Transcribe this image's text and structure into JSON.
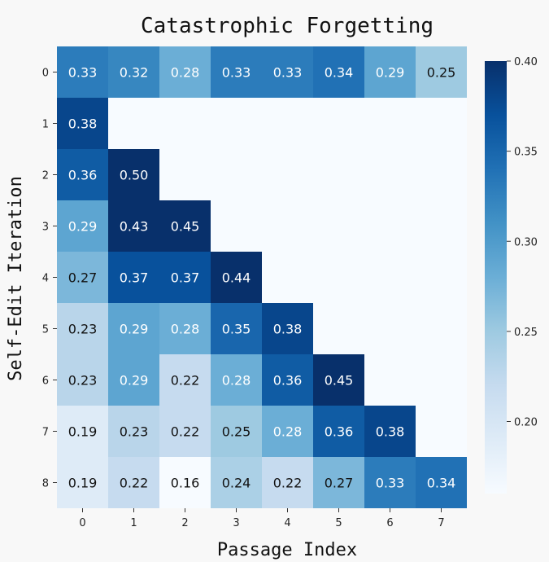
{
  "chart_data": {
    "type": "heatmap",
    "title": "Catastrophic Forgetting",
    "xlabel": "Passage Index",
    "ylabel": "Self-Edit Iteration",
    "x_categories": [
      "0",
      "1",
      "2",
      "3",
      "4",
      "5",
      "6",
      "7"
    ],
    "y_categories": [
      "0",
      "1",
      "2",
      "3",
      "4",
      "5",
      "6",
      "7",
      "8"
    ],
    "values": [
      [
        0.33,
        0.32,
        0.28,
        0.33,
        0.33,
        0.34,
        0.29,
        0.25
      ],
      [
        0.38,
        null,
        null,
        null,
        null,
        null,
        null,
        null
      ],
      [
        0.36,
        0.5,
        null,
        null,
        null,
        null,
        null,
        null
      ],
      [
        0.29,
        0.43,
        0.45,
        null,
        null,
        null,
        null,
        null
      ],
      [
        0.27,
        0.37,
        0.37,
        0.44,
        null,
        null,
        null,
        null
      ],
      [
        0.23,
        0.29,
        0.28,
        0.35,
        0.38,
        null,
        null,
        null
      ],
      [
        0.23,
        0.29,
        0.22,
        0.28,
        0.36,
        0.45,
        null,
        null
      ],
      [
        0.19,
        0.23,
        0.22,
        0.25,
        0.28,
        0.36,
        0.38,
        null
      ],
      [
        0.19,
        0.22,
        0.16,
        0.24,
        0.22,
        0.27,
        0.33,
        0.34
      ]
    ],
    "value_labels": [
      [
        "0.33",
        "0.32",
        "0.28",
        "0.33",
        "0.33",
        "0.34",
        "0.29",
        "0.25"
      ],
      [
        "0.38",
        "",
        "",
        "",
        "",
        "",
        "",
        ""
      ],
      [
        "0.36",
        "0.50",
        "",
        "",
        "",
        "",
        "",
        ""
      ],
      [
        "0.29",
        "0.43",
        "0.45",
        "",
        "",
        "",
        "",
        ""
      ],
      [
        "0.27",
        "0.37",
        "0.37",
        "0.44",
        "",
        "",
        "",
        ""
      ],
      [
        "0.23",
        "0.29",
        "0.28",
        "0.35",
        "0.38",
        "",
        "",
        ""
      ],
      [
        "0.23",
        "0.29",
        "0.22",
        "0.28",
        "0.36",
        "0.45",
        "",
        ""
      ],
      [
        "0.19",
        "0.23",
        "0.22",
        "0.25",
        "0.28",
        "0.36",
        "0.38",
        ""
      ],
      [
        "0.19",
        "0.22",
        "0.16",
        "0.24",
        "0.22",
        "0.27",
        "0.33",
        "0.34"
      ]
    ],
    "colormap": "Blues",
    "vmin": 0.16,
    "vmax": 0.4,
    "colorbar_ticks": [
      0.2,
      0.25,
      0.3,
      0.35,
      0.4
    ],
    "colorbar_tick_labels": [
      "0.20",
      "0.25",
      "0.30",
      "0.35",
      "0.40"
    ],
    "colorbar_position": "right",
    "grid": false
  }
}
